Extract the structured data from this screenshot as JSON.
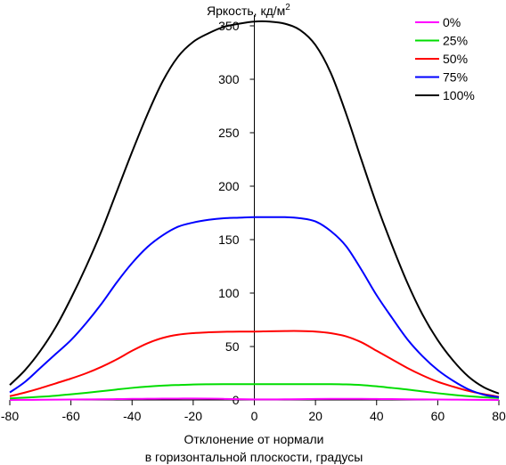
{
  "chart_data": {
    "type": "line",
    "title": "",
    "ylabel": "Яркость, кд/м",
    "ylabel_sup": "2",
    "xlabel_lines": [
      "Отклонение от нормали",
      "в горизонтальной плоскости, градусы"
    ],
    "xlim": [
      -80,
      80
    ],
    "ylim": [
      0,
      360
    ],
    "x_ticks": [
      -80,
      -60,
      -40,
      -20,
      0,
      20,
      40,
      60,
      80
    ],
    "y_ticks": [
      0,
      50,
      100,
      150,
      200,
      250,
      300,
      350
    ],
    "grid": false,
    "legend_position": "top-right",
    "x": [
      -80,
      -75,
      -70,
      -65,
      -60,
      -55,
      -50,
      -45,
      -40,
      -35,
      -30,
      -25,
      -20,
      -15,
      -10,
      -5,
      0,
      5,
      10,
      15,
      20,
      25,
      30,
      35,
      40,
      45,
      50,
      55,
      60,
      65,
      70,
      75,
      80
    ],
    "series": [
      {
        "name": "0%",
        "color": "#ff00ff",
        "values": [
          0,
          0.1,
          0.2,
          0.3,
          0.4,
          0.5,
          0.6,
          0.8,
          1.0,
          1.1,
          1.2,
          1.3,
          1.4,
          1.3,
          1.0,
          0.7,
          0.5,
          0.5,
          0.6,
          0.7,
          0.9,
          1.0,
          1.0,
          1.0,
          0.9,
          0.8,
          0.6,
          0.5,
          0.4,
          0.3,
          0.2,
          0.1,
          0
        ]
      },
      {
        "name": "25%",
        "color": "#00dd00",
        "values": [
          1.5,
          2.2,
          3.0,
          4.0,
          5.3,
          6.7,
          8.2,
          9.8,
          11.3,
          12.5,
          13.4,
          14.0,
          14.5,
          14.7,
          14.8,
          14.8,
          14.8,
          14.8,
          14.8,
          14.8,
          14.8,
          14.8,
          14.6,
          14.0,
          12.8,
          11.3,
          9.8,
          8.0,
          6.3,
          4.8,
          3.5,
          2.5,
          1.8
        ]
      },
      {
        "name": "50%",
        "color": "#ff0000",
        "values": [
          3.5,
          7.0,
          11.0,
          15.5,
          20.0,
          25.0,
          31.0,
          38.0,
          46.0,
          53.0,
          58.0,
          61.0,
          62.5,
          63.3,
          63.8,
          64.0,
          64.0,
          64.3,
          64.5,
          64.5,
          64.0,
          62.5,
          59.5,
          54.0,
          46.0,
          38.0,
          30.0,
          23.0,
          17.0,
          12.5,
          8.5,
          5.5,
          3.0
        ]
      },
      {
        "name": "75%",
        "color": "#0000ff",
        "values": [
          7.0,
          17.0,
          30.0,
          43.0,
          56.0,
          72.0,
          90.0,
          110.0,
          128.0,
          143.0,
          154.0,
          162.0,
          166.0,
          168.5,
          170.0,
          170.5,
          171.0,
          171.0,
          171.0,
          170.0,
          167.0,
          158.0,
          144.0,
          122.0,
          98.0,
          77.0,
          57.0,
          41.0,
          28.0,
          18.0,
          10.0,
          5.0,
          2.5
        ]
      },
      {
        "name": "100%",
        "color": "#000000",
        "values": [
          14.0,
          28.0,
          46.0,
          68.0,
          95.0,
          125.0,
          158.0,
          195.0,
          232.0,
          267.0,
          298.0,
          321.0,
          335.0,
          343.0,
          349.0,
          352.0,
          354.0,
          354.0,
          352.0,
          346.0,
          332.0,
          306.0,
          268.0,
          225.0,
          183.0,
          145.0,
          110.0,
          80.0,
          56.0,
          37.0,
          22.0,
          12.0,
          6.0
        ]
      }
    ]
  }
}
